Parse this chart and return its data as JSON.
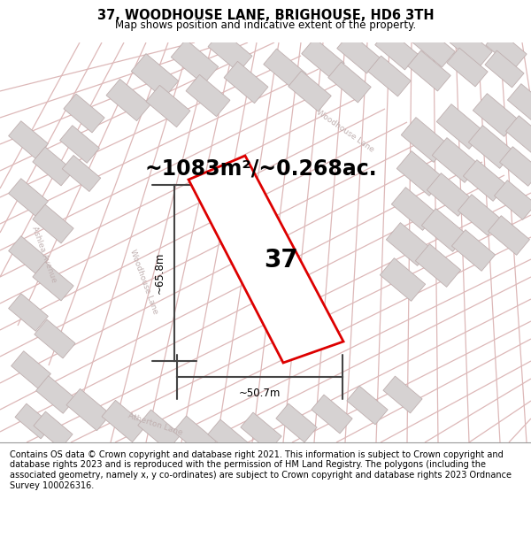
{
  "title": "37, WOODHOUSE LANE, BRIGHOUSE, HD6 3TH",
  "subtitle": "Map shows position and indicative extent of the property.",
  "footer": "Contains OS data © Crown copyright and database right 2021. This information is subject to Crown copyright and database rights 2023 and is reproduced with the permission of HM Land Registry. The polygons (including the associated geometry, namely x, y co-ordinates) are subject to Crown copyright and database rights 2023 Ordnance Survey 100026316.",
  "area_text": "~1083m²/~0.268ac.",
  "label_37": "37",
  "dim_h": "~65.8m",
  "dim_w": "~50.7m",
  "map_bg": "#f2eeee",
  "building_fill": "#d6d2d2",
  "building_edge": "#bfafaf",
  "street_color": "#e8c8c8",
  "plot_edge_color": "#dd0000",
  "plot_fill": "#ffffff",
  "dim_color": "#444444",
  "street_label_color": "#c0b0b0",
  "title_fontsize": 10.5,
  "subtitle_fontsize": 8.5,
  "area_fontsize": 17,
  "label_fontsize": 20,
  "footer_fontsize": 7.0
}
